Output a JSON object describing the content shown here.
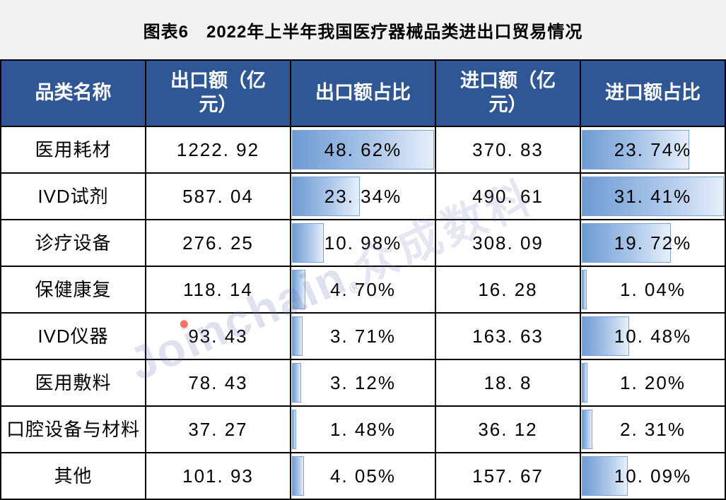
{
  "title": "图表6　2022年上半年我国医疗器械品类进出口贸易情况",
  "colors": {
    "header_bg": "#2F5795",
    "header_text": "#FFFFFF",
    "grid_line": "#000000",
    "cell_bg": "#FFFFFF",
    "body_text": "#000000",
    "databar_start": "#6D9BD3",
    "databar_end": "#E6EFFA",
    "databar_border": "#7EA2D6",
    "watermark_text": "#CBD3E9",
    "watermark_dot": "#F15B4E"
  },
  "table": {
    "headers": [
      "品类名称",
      "出口额（亿\n元）",
      "出口额占比",
      "进口额（亿\n元）",
      "进口额占比"
    ],
    "rows": [
      {
        "category": "医用耗材",
        "export_value": "1222. 92",
        "export_share": "48. 62%",
        "export_share_pct": 48.62,
        "import_value": "370. 83",
        "import_share": "23. 74%",
        "import_share_pct": 23.74
      },
      {
        "category": "IVD试剂",
        "export_value": "587. 04",
        "export_share": "23. 34%",
        "export_share_pct": 23.34,
        "import_value": "490. 61",
        "import_share": "31. 41%",
        "import_share_pct": 31.41
      },
      {
        "category": "诊疗设备",
        "export_value": "276. 25",
        "export_share": "10. 98%",
        "export_share_pct": 10.98,
        "import_value": "308. 09",
        "import_share": "19. 72%",
        "import_share_pct": 19.72
      },
      {
        "category": "保健康复",
        "export_value": "118. 14",
        "export_share": "4. 70%",
        "export_share_pct": 4.7,
        "import_value": "16. 28",
        "import_share": "1. 04%",
        "import_share_pct": 1.04
      },
      {
        "category": "IVD仪器",
        "export_value": "93. 43",
        "export_share": "3. 71%",
        "export_share_pct": 3.71,
        "import_value": "163. 63",
        "import_share": "10. 48%",
        "import_share_pct": 10.48
      },
      {
        "category": "医用敷料",
        "export_value": "78. 43",
        "export_share": "3. 12%",
        "export_share_pct": 3.12,
        "import_value": "18. 8",
        "import_share": "1. 20%",
        "import_share_pct": 1.2
      },
      {
        "category": "口腔设备与材料",
        "export_value": "37. 27",
        "export_share": "1. 48%",
        "export_share_pct": 1.48,
        "import_value": "36. 12",
        "import_share": "2. 31%",
        "import_share_pct": 2.31
      },
      {
        "category": "其他",
        "export_value": "101. 93",
        "export_share": "4. 05%",
        "export_share_pct": 4.05,
        "import_value": "157. 67",
        "import_share": "10. 09%",
        "import_share_pct": 10.09
      }
    ],
    "databar_scale": {
      "export_share_max": 48.62,
      "import_share_max": 31.41
    }
  },
  "watermark": {
    "part1": "Jo",
    "part2": "i",
    "part3": "nchain",
    "reg": "®",
    "cn": "众成数科"
  },
  "chart_data": {
    "type": "table",
    "title": "图表6 2022年上半年我国医疗器械品类进出口贸易情况",
    "categories": [
      "医用耗材",
      "IVD试剂",
      "诊疗设备",
      "保健康复",
      "IVD仪器",
      "医用敷料",
      "口腔设备与材料",
      "其他"
    ],
    "series": [
      {
        "name": "出口额（亿元）",
        "values": [
          1222.92,
          587.04,
          276.25,
          118.14,
          93.43,
          78.43,
          37.27,
          101.93
        ]
      },
      {
        "name": "出口额占比",
        "unit": "%",
        "values": [
          48.62,
          23.34,
          10.98,
          4.7,
          3.71,
          3.12,
          1.48,
          4.05
        ]
      },
      {
        "name": "进口额（亿元）",
        "values": [
          370.83,
          490.61,
          308.09,
          16.28,
          163.63,
          18.8,
          36.12,
          157.67
        ]
      },
      {
        "name": "进口额占比",
        "unit": "%",
        "values": [
          23.74,
          31.41,
          19.72,
          1.04,
          10.48,
          1.2,
          2.31,
          10.09
        ]
      }
    ],
    "layout_hints": {
      "share_columns_have_gradient_databars": true,
      "databars_scaled_to_column_max": true,
      "export_share_bar_max": 48.62,
      "import_share_bar_max": 31.41
    }
  }
}
